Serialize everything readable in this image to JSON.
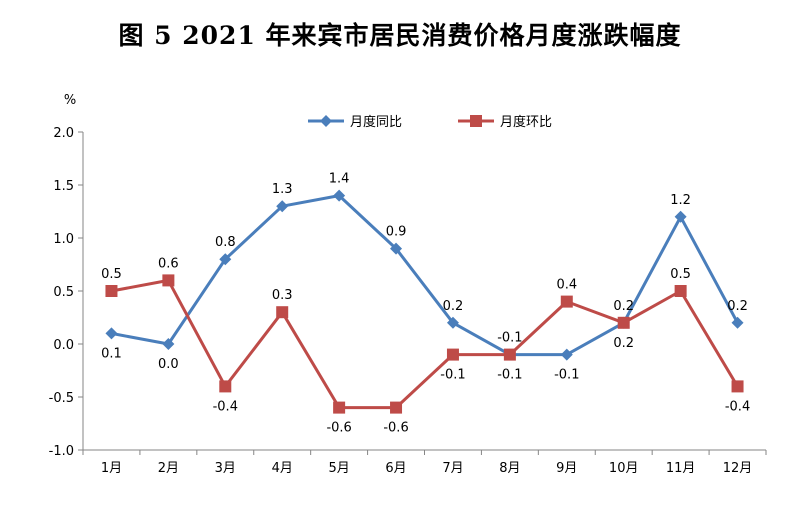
{
  "chart_data": {
    "type": "line",
    "title": "图 5    2021 年来宾市居民消费价格月度涨跌幅度",
    "ylabel": "%",
    "xlabel": "",
    "ylim": [
      -1.0,
      2.0
    ],
    "yticks": [
      "2.0",
      "1.5",
      "1.0",
      "0.5",
      "0.0",
      "-0.5",
      "-1.0"
    ],
    "categories": [
      "1月",
      "2月",
      "3月",
      "4月",
      "5月",
      "6月",
      "7月",
      "8月",
      "9月",
      "10月",
      "11月",
      "12月"
    ],
    "series": [
      {
        "name": "月度同比",
        "color": "#4a7ebb",
        "marker": "diamond",
        "values": [
          0.1,
          0.0,
          0.8,
          1.3,
          1.4,
          0.9,
          0.2,
          -0.1,
          -0.1,
          0.2,
          1.2,
          0.2
        ],
        "labels": [
          "0.1",
          "0.0",
          "0.8",
          "1.3",
          "1.4",
          "0.9",
          "0.2",
          "-0.1",
          "-0.1",
          "0.2",
          "1.2",
          "0.2"
        ]
      },
      {
        "name": "月度环比",
        "color": "#be4b48",
        "marker": "square",
        "values": [
          0.5,
          0.6,
          -0.4,
          0.3,
          -0.6,
          -0.6,
          -0.1,
          -0.1,
          0.4,
          0.2,
          0.5,
          -0.4
        ],
        "labels": [
          "0.5",
          "0.6",
          "-0.4",
          "0.3",
          "-0.6",
          "-0.6",
          "-0.1",
          "-0.1",
          "0.4",
          "0.2",
          "0.5",
          "-0.4"
        ]
      }
    ],
    "legend_position": "top"
  }
}
